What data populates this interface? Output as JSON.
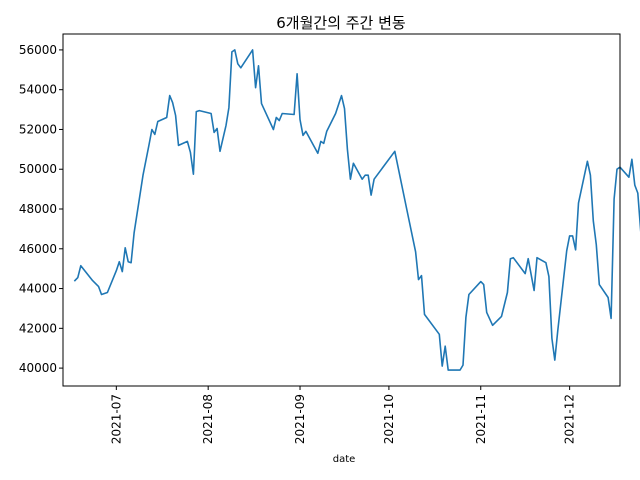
{
  "chart_data": {
    "type": "line",
    "title": "6개월간의 주간 변동",
    "xlabel": "date",
    "ylabel": "",
    "grid": false,
    "legend": false,
    "x_ticks": [
      "2021-07",
      "2021-08",
      "2021-09",
      "2021-10",
      "2021-11",
      "2021-12"
    ],
    "y_ticks": [
      40000,
      42000,
      44000,
      46000,
      48000,
      50000,
      52000,
      54000,
      56000
    ],
    "xlim": [
      "2021-06-13",
      "2021-12-18"
    ],
    "ylim": [
      39100,
      56800
    ],
    "series": [
      {
        "color": "#1f77b4",
        "points": [
          [
            "2021-06-17",
            44400
          ],
          [
            "2021-06-18",
            44550
          ],
          [
            "2021-06-19",
            45150
          ],
          [
            "2021-06-23",
            44400
          ],
          [
            "2021-06-25",
            44100
          ],
          [
            "2021-06-26",
            43700
          ],
          [
            "2021-06-28",
            43800
          ],
          [
            "2021-07-01",
            44900
          ],
          [
            "2021-07-02",
            45350
          ],
          [
            "2021-07-03",
            44850
          ],
          [
            "2021-07-04",
            46050
          ],
          [
            "2021-07-05",
            45350
          ],
          [
            "2021-07-06",
            45300
          ],
          [
            "2021-07-07",
            46800
          ],
          [
            "2021-07-10",
            49700
          ],
          [
            "2021-07-12",
            51200
          ],
          [
            "2021-07-13",
            52000
          ],
          [
            "2021-07-14",
            51750
          ],
          [
            "2021-07-15",
            52400
          ],
          [
            "2021-07-18",
            52600
          ],
          [
            "2021-07-19",
            53700
          ],
          [
            "2021-07-20",
            53350
          ],
          [
            "2021-07-21",
            52700
          ],
          [
            "2021-07-22",
            51200
          ],
          [
            "2021-07-25",
            51400
          ],
          [
            "2021-07-26",
            50850
          ],
          [
            "2021-07-27",
            49750
          ],
          [
            "2021-07-28",
            52900
          ],
          [
            "2021-07-29",
            52950
          ],
          [
            "2021-08-02",
            52800
          ],
          [
            "2021-08-03",
            51850
          ],
          [
            "2021-08-04",
            52050
          ],
          [
            "2021-08-05",
            50900
          ],
          [
            "2021-08-07",
            52200
          ],
          [
            "2021-08-08",
            53100
          ],
          [
            "2021-08-09",
            55900
          ],
          [
            "2021-08-10",
            56000
          ],
          [
            "2021-08-11",
            55300
          ],
          [
            "2021-08-12",
            55100
          ],
          [
            "2021-08-16",
            56000
          ],
          [
            "2021-08-17",
            54100
          ],
          [
            "2021-08-18",
            55200
          ],
          [
            "2021-08-19",
            53300
          ],
          [
            "2021-08-23",
            52000
          ],
          [
            "2021-08-24",
            52600
          ],
          [
            "2021-08-25",
            52450
          ],
          [
            "2021-08-26",
            52800
          ],
          [
            "2021-08-30",
            52750
          ],
          [
            "2021-08-31",
            54800
          ],
          [
            "2021-09-01",
            52500
          ],
          [
            "2021-09-02",
            51700
          ],
          [
            "2021-09-03",
            51900
          ],
          [
            "2021-09-07",
            50800
          ],
          [
            "2021-09-08",
            51400
          ],
          [
            "2021-09-09",
            51300
          ],
          [
            "2021-09-10",
            51900
          ],
          [
            "2021-09-13",
            52800
          ],
          [
            "2021-09-15",
            53700
          ],
          [
            "2021-09-16",
            53050
          ],
          [
            "2021-09-17",
            51000
          ],
          [
            "2021-09-18",
            49500
          ],
          [
            "2021-09-19",
            50300
          ],
          [
            "2021-09-22",
            49500
          ],
          [
            "2021-09-23",
            49700
          ],
          [
            "2021-09-24",
            49700
          ],
          [
            "2021-09-25",
            48700
          ],
          [
            "2021-09-26",
            49500
          ],
          [
            "2021-10-03",
            50900
          ],
          [
            "2021-10-07",
            48000
          ],
          [
            "2021-10-10",
            45850
          ],
          [
            "2021-10-11",
            44450
          ],
          [
            "2021-10-12",
            44650
          ],
          [
            "2021-10-13",
            42700
          ],
          [
            "2021-10-18",
            41700
          ],
          [
            "2021-10-19",
            40100
          ],
          [
            "2021-10-20",
            41100
          ],
          [
            "2021-10-21",
            39900
          ],
          [
            "2021-10-25",
            39900
          ],
          [
            "2021-10-26",
            40150
          ],
          [
            "2021-10-27",
            42550
          ],
          [
            "2021-10-28",
            43700
          ],
          [
            "2021-11-01",
            44350
          ],
          [
            "2021-11-02",
            44200
          ],
          [
            "2021-11-03",
            42800
          ],
          [
            "2021-11-05",
            42150
          ],
          [
            "2021-11-08",
            42600
          ],
          [
            "2021-11-10",
            43800
          ],
          [
            "2021-11-11",
            45500
          ],
          [
            "2021-11-12",
            45550
          ],
          [
            "2021-11-16",
            44750
          ],
          [
            "2021-11-17",
            45500
          ],
          [
            "2021-11-19",
            43900
          ],
          [
            "2021-11-20",
            45550
          ],
          [
            "2021-11-23",
            45300
          ],
          [
            "2021-11-24",
            44600
          ],
          [
            "2021-11-25",
            41500
          ],
          [
            "2021-11-26",
            40400
          ],
          [
            "2021-11-27",
            41900
          ],
          [
            "2021-11-30",
            45900
          ],
          [
            "2021-12-01",
            46650
          ],
          [
            "2021-12-02",
            46650
          ],
          [
            "2021-12-03",
            45950
          ],
          [
            "2021-12-04",
            48300
          ],
          [
            "2021-12-07",
            50400
          ],
          [
            "2021-12-08",
            49700
          ],
          [
            "2021-12-09",
            47400
          ],
          [
            "2021-12-10",
            46200
          ],
          [
            "2021-12-11",
            44200
          ],
          [
            "2021-12-14",
            43550
          ],
          [
            "2021-12-15",
            42500
          ],
          [
            "2021-12-16",
            48500
          ],
          [
            "2021-12-17",
            50000
          ],
          [
            "2021-12-18",
            50100
          ],
          [
            "2021-12-21",
            49600
          ],
          [
            "2021-12-22",
            50500
          ],
          [
            "2021-12-23",
            49200
          ],
          [
            "2021-12-24",
            48800
          ],
          [
            "2021-12-25",
            46900
          ]
        ]
      }
    ]
  }
}
